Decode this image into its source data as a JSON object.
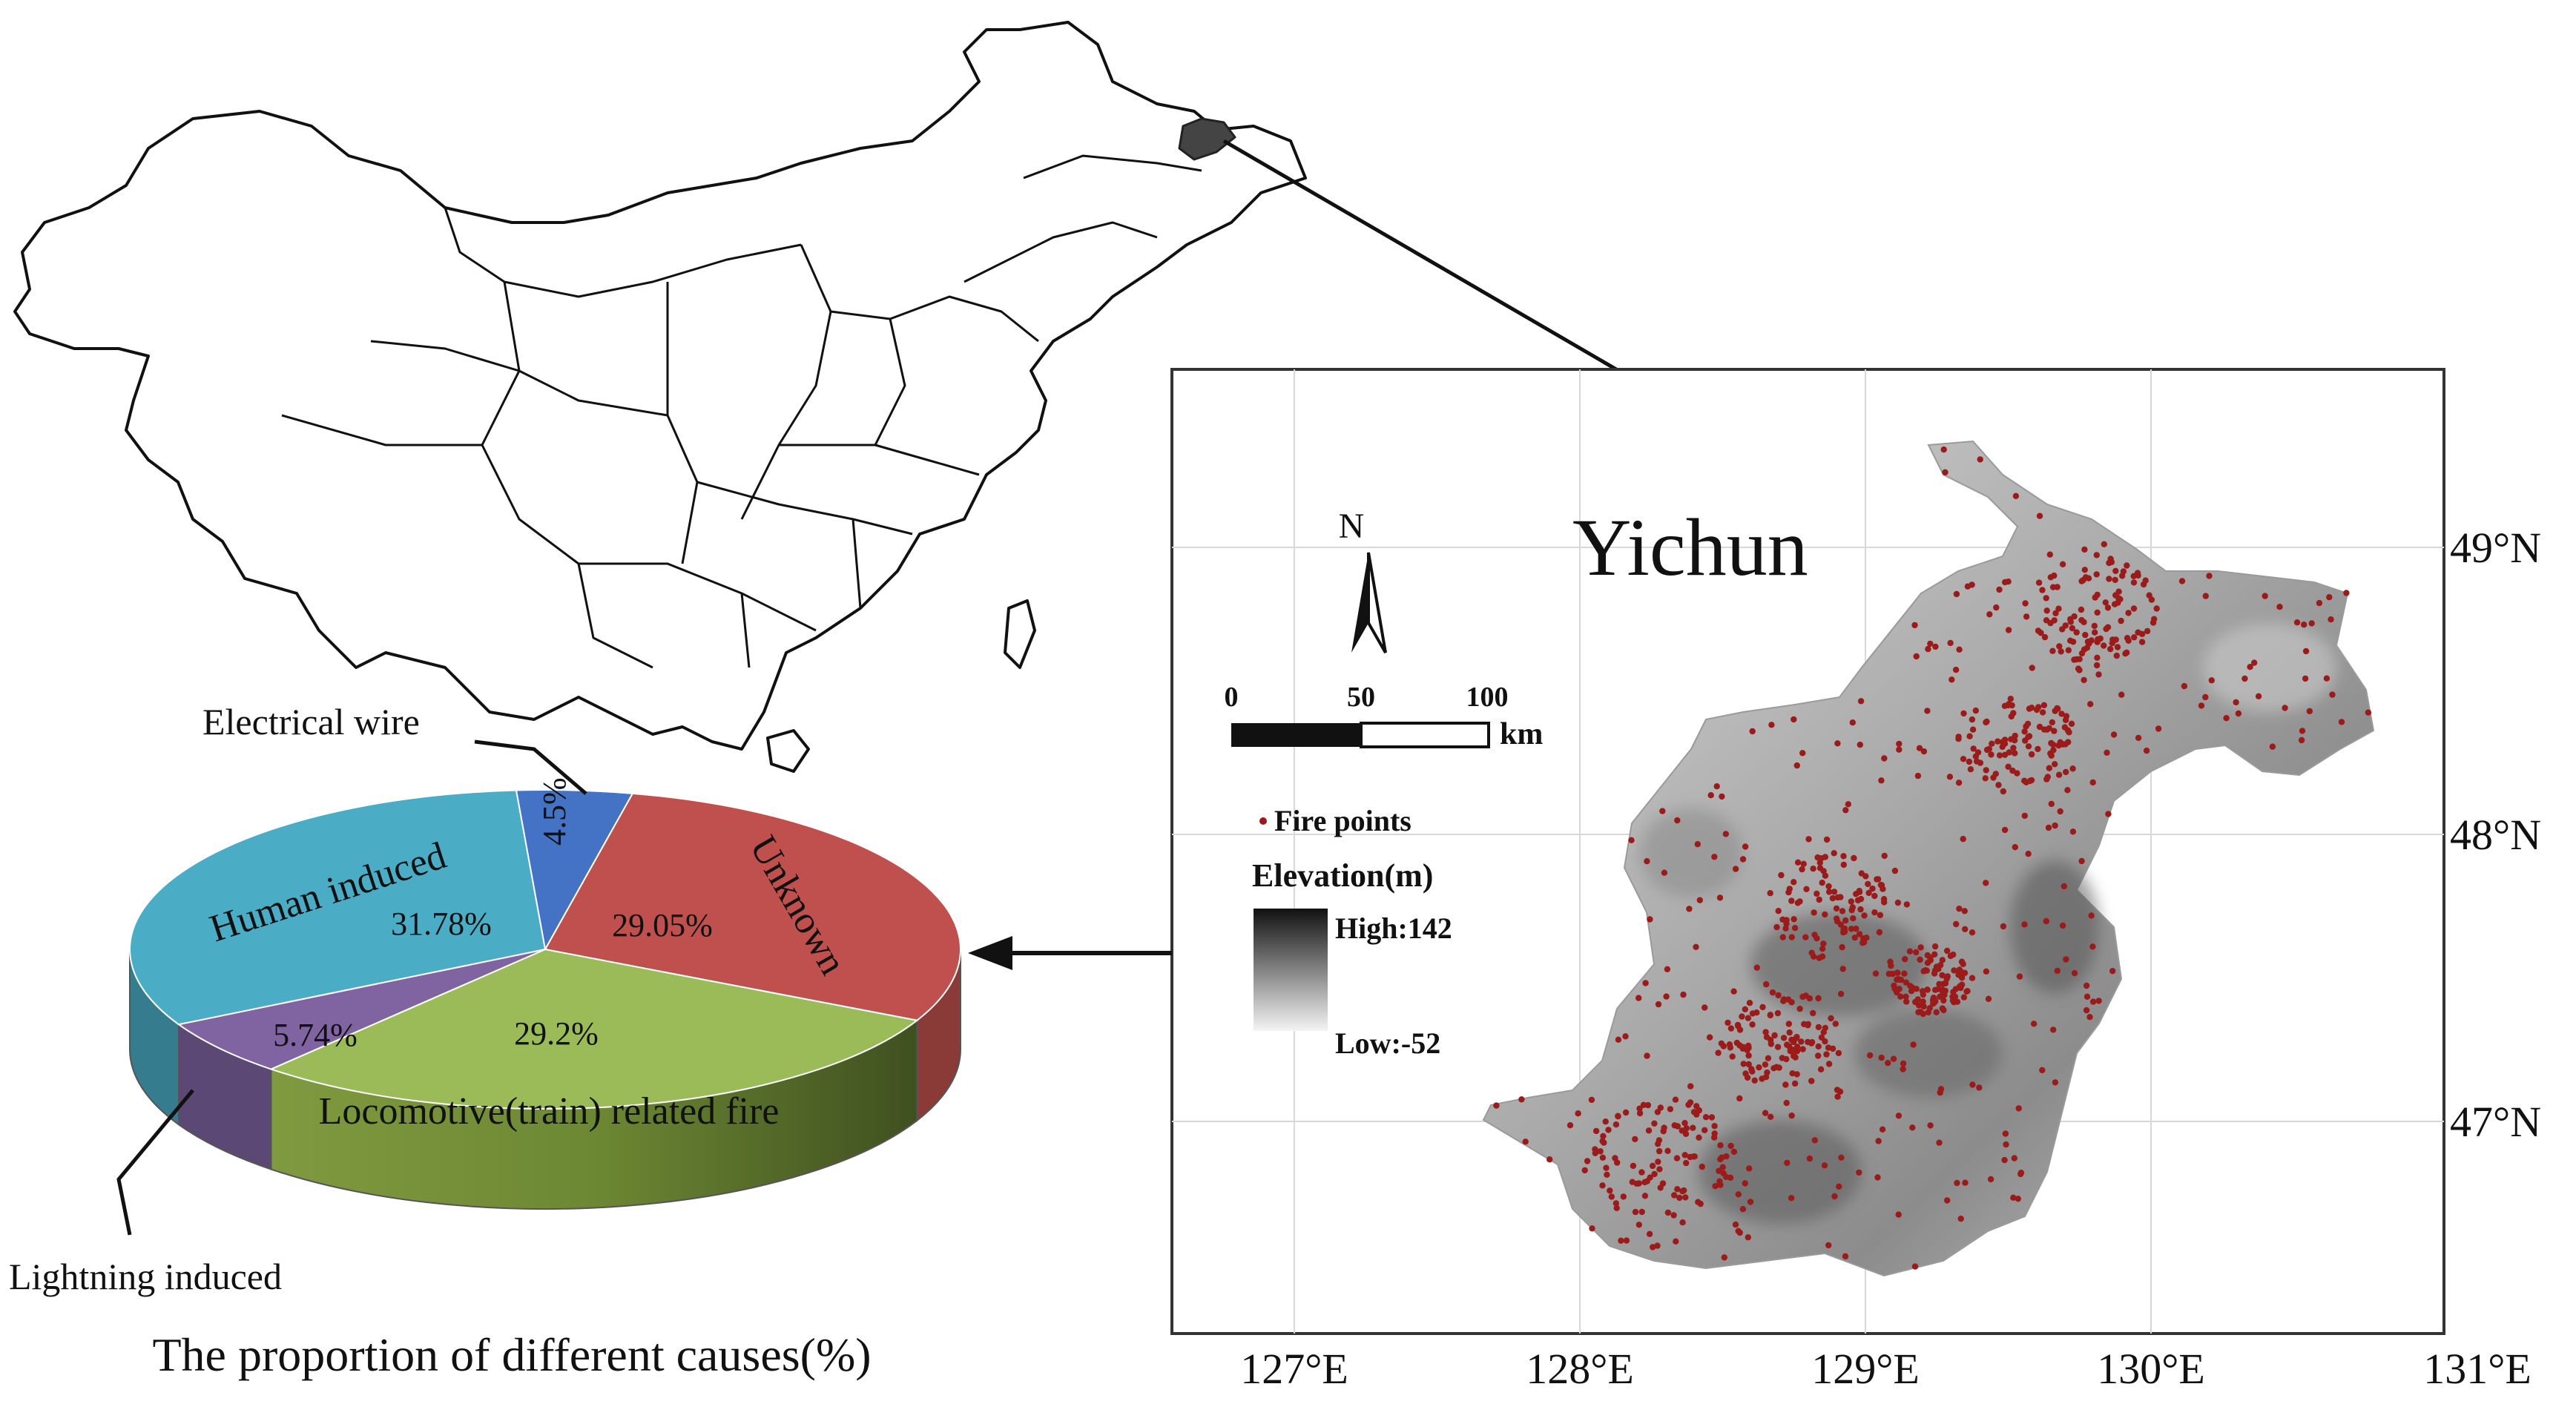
{
  "map": {
    "title": "Yichun",
    "north_label": "N",
    "scale": {
      "ticks": [
        "0",
        "50",
        "100"
      ],
      "unit": "km"
    },
    "legend": {
      "fire_label": "Fire points",
      "elevation_title": "Elevation(m)",
      "high_label": "High:142",
      "low_label": "Low:-52"
    },
    "lat_labels": [
      "49°N",
      "48°N",
      "47°N"
    ],
    "lon_labels": [
      "127°E",
      "128°E",
      "129°E",
      "130°E",
      "131°E"
    ],
    "colors": {
      "fire_points": "#9b1b1b",
      "frame": "#333333"
    }
  },
  "chart_data": {
    "type": "pie",
    "title": "The proportion of different causes(%)",
    "style": "3d-exploded-style pie",
    "slices": [
      {
        "label": "Electrical wire",
        "value": 4.5,
        "value_label": "4.5%",
        "color": "#4472c4"
      },
      {
        "label": "Unknown",
        "value": 29.05,
        "value_label": "29.05%",
        "color": "#c0504d"
      },
      {
        "label": "Locomotive(train) related fire",
        "value": 29.2,
        "value_label": "29.2%",
        "color": "#9bbb59"
      },
      {
        "label": "Lightning induced",
        "value": 5.74,
        "value_label": "5.74%",
        "color": "#8064a2"
      },
      {
        "label": "Human induced",
        "value": 31.78,
        "value_label": "31.78%",
        "color": "#4bacc6"
      }
    ],
    "callout_labels": {
      "electrical": "Electrical wire",
      "human": "Human induced",
      "unknown": "Unknown",
      "locomotive": "Locomotive(train) related fire",
      "lightning": "Lightning induced"
    }
  }
}
